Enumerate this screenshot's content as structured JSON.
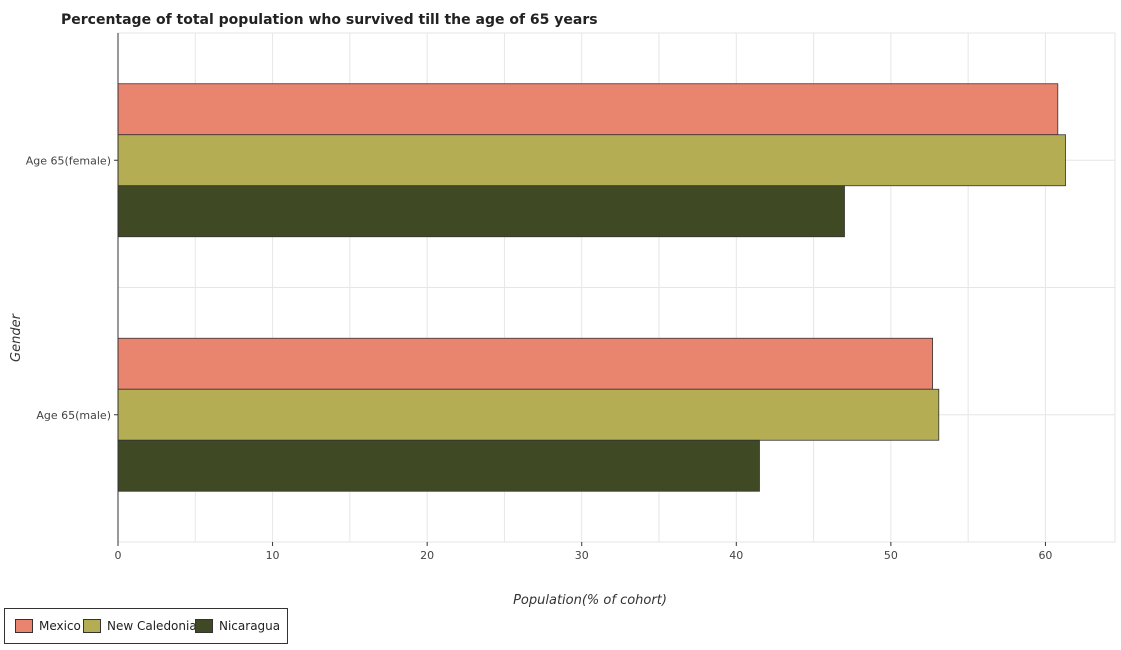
{
  "chart_data": {
    "type": "bar",
    "orientation": "horizontal",
    "title": "Percentage of total population who survived till the age of 65 years",
    "xlabel": "Population(% of cohort)",
    "ylabel": "Gender",
    "xlim": [
      0,
      64.5
    ],
    "xticks": [
      0,
      10,
      20,
      30,
      40,
      50,
      60
    ],
    "grid": true,
    "legend_position": "bottom-left",
    "categories": [
      "Age 65(female)",
      "Age 65(male)"
    ],
    "series": [
      {
        "name": "Mexico",
        "color": "#e9846f",
        "values": [
          60.8,
          52.7
        ]
      },
      {
        "name": "New Caledonia",
        "color": "#b4ad53",
        "values": [
          61.3,
          53.1
        ]
      },
      {
        "name": "Nicaragua",
        "color": "#3f4a25",
        "values": [
          47.0,
          41.5
        ]
      }
    ]
  }
}
